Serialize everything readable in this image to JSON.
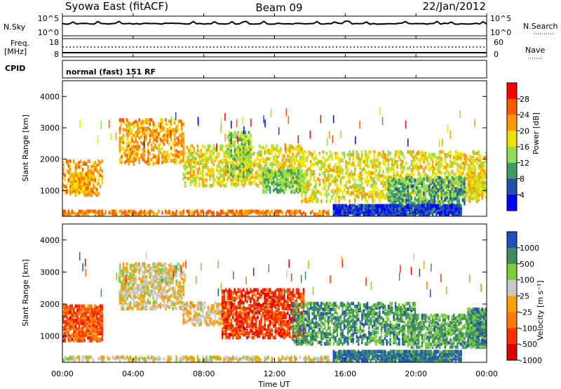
{
  "header": {
    "station_title": "Syowa East (fitACF)",
    "beam": "Beam 09",
    "date": "22/Jan/2012"
  },
  "top_panels": {
    "nsky_label": "N.Sky",
    "nsky_ticks": [
      "10^5",
      "10^0"
    ],
    "nsearch_label": "N.Search",
    "nsearch_ticks": [
      "10^5",
      "10^0"
    ],
    "freq_label_line1": "Freq.",
    "freq_label_line2": "[MHz]",
    "freq_ticks": [
      "18",
      "8"
    ],
    "nave_label": "Nave",
    "nave_ticks": [
      "60",
      "0"
    ],
    "cpid_label": "CPID",
    "cpid_text": "normal (fast) 151 RF"
  },
  "chart_data": [
    {
      "type": "heatmap",
      "name": "power",
      "ylabel": "Slant Range [km]",
      "xlabel": "",
      "xlim_hours": [
        0,
        24
      ],
      "ylim": [
        180,
        4500
      ],
      "yticks": [
        1000,
        2000,
        3000,
        4000
      ],
      "colorbar": {
        "label": "Power [dB]",
        "ticks": [
          "28",
          "24",
          "20",
          "16",
          "12",
          "8",
          "4"
        ],
        "colors": [
          "#ff0000",
          "#ff5a00",
          "#ff9b00",
          "#f0e000",
          "#96dc50",
          "#3c9e60",
          "#2050b0",
          "#0000ff"
        ]
      },
      "features": [
        {
          "t0": 0.0,
          "t1": 2.3,
          "r0": 800,
          "r1": 1900,
          "dens": 0.35,
          "lvl": 2
        },
        {
          "t0": 0.4,
          "t1": 1.6,
          "r0": 900,
          "r1": 1500,
          "dens": 0.7,
          "lvl": 2.4
        },
        {
          "t0": 3.2,
          "t1": 6.8,
          "r0": 1800,
          "r1": 3200,
          "dens": 0.35,
          "lvl": 2
        },
        {
          "t0": 6.8,
          "t1": 13.5,
          "r0": 1100,
          "r1": 2400,
          "dens": 0.35,
          "lvl": 3
        },
        {
          "t0": 9.3,
          "t1": 10.6,
          "r0": 1400,
          "r1": 2800,
          "dens": 0.45,
          "lvl": 4
        },
        {
          "t0": 11.3,
          "t1": 13.8,
          "r0": 900,
          "r1": 1600,
          "dens": 0.55,
          "lvl": 4.4
        },
        {
          "t0": 13.5,
          "t1": 24.0,
          "r0": 600,
          "r1": 2200,
          "dens": 0.3,
          "lvl": 3
        },
        {
          "t0": 18.4,
          "t1": 22.8,
          "r0": 500,
          "r1": 1400,
          "dens": 0.5,
          "lvl": 4.8
        },
        {
          "t0": 15.3,
          "t1": 22.6,
          "r0": 190,
          "r1": 480,
          "dens": 0.9,
          "lvl": 6.4
        },
        {
          "t0": 0.0,
          "t1": 15.0,
          "r0": 190,
          "r1": 320,
          "dens": 0.55,
          "lvl": 1.6
        },
        {
          "t0": 22.9,
          "t1": 24.0,
          "r0": 700,
          "r1": 1800,
          "dens": 0.45,
          "lvl": 3
        }
      ]
    },
    {
      "type": "heatmap",
      "name": "velocity",
      "ylabel": "Slant Range [km]",
      "xlabel": "Time UT",
      "xlim_hours": [
        0,
        24
      ],
      "xticks": [
        "00:00",
        "04:00",
        "08:00",
        "12:00",
        "16:00",
        "20:00",
        "00:00"
      ],
      "ylim": [
        180,
        4500
      ],
      "yticks": [
        1000,
        2000,
        3000,
        4000
      ],
      "colorbar": {
        "label": "Velocity [m s⁻¹]",
        "ticks": [
          "1000",
          "500",
          "100",
          "25",
          "-25",
          "-100",
          "-500",
          "-1000"
        ],
        "colors": [
          "#2050c0",
          "#3c8e60",
          "#7ccc3a",
          "#c8c8c8",
          "#ffa000",
          "#ff7a00",
          "#ff3000",
          "#e00000"
        ]
      },
      "features": [
        {
          "t0": 0.0,
          "t1": 2.3,
          "r0": 800,
          "r1": 1900,
          "dens": 0.6,
          "lvl": 5.5
        },
        {
          "t0": 3.2,
          "t1": 6.8,
          "r0": 1800,
          "r1": 3200,
          "dens": 0.45,
          "lvl": 3.2
        },
        {
          "t0": 6.8,
          "t1": 9.4,
          "r0": 1300,
          "r1": 2000,
          "dens": 0.45,
          "lvl": 3.5
        },
        {
          "t0": 9.0,
          "t1": 13.6,
          "r0": 900,
          "r1": 2400,
          "dens": 0.5,
          "lvl": 6
        },
        {
          "t0": 13.0,
          "t1": 20.0,
          "r0": 700,
          "r1": 2000,
          "dens": 0.45,
          "lvl": 1.2
        },
        {
          "t0": 19.5,
          "t1": 24.0,
          "r0": 600,
          "r1": 1600,
          "dens": 0.5,
          "lvl": 1.5
        },
        {
          "t0": 15.3,
          "t1": 22.6,
          "r0": 190,
          "r1": 480,
          "dens": 0.85,
          "lvl": 0.6
        },
        {
          "t0": 0.0,
          "t1": 15.0,
          "r0": 190,
          "r1": 320,
          "dens": 0.45,
          "lvl": 3.2
        },
        {
          "t0": 22.9,
          "t1": 24.0,
          "r0": 700,
          "r1": 1800,
          "dens": 0.7,
          "lvl": 1.1
        }
      ]
    }
  ]
}
